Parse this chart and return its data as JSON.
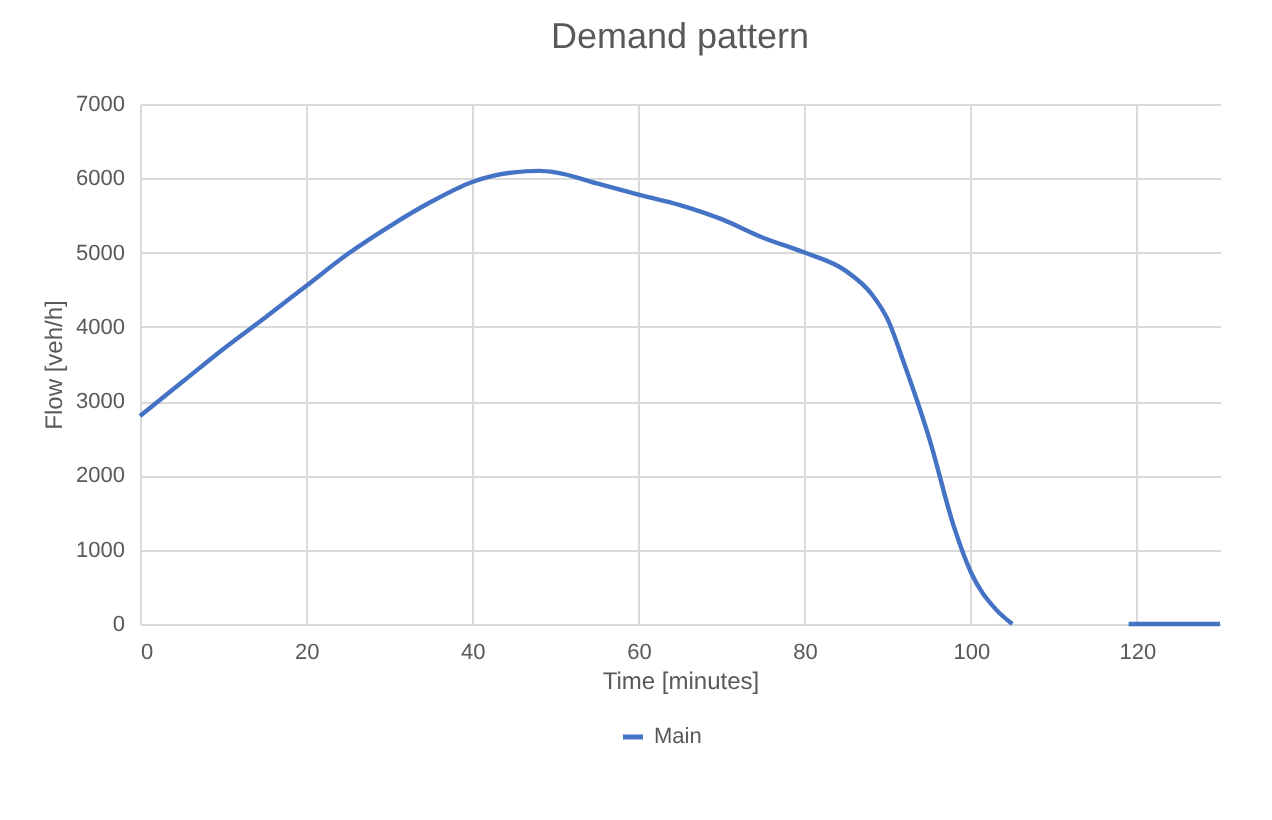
{
  "chart_data": {
    "type": "line",
    "title": "Demand pattern",
    "xlabel": "Time [minutes]",
    "ylabel": "Flow [veh/h]",
    "x": [
      0,
      5,
      10,
      15,
      20,
      25,
      30,
      35,
      40,
      45,
      48,
      50,
      55,
      60,
      65,
      70,
      75,
      80,
      85,
      88,
      90,
      92,
      95,
      98,
      100,
      103,
      105,
      112,
      119,
      125,
      130
    ],
    "series": [
      {
        "name": "Main",
        "color": "#4472c4",
        "values": [
          2800,
          3250,
          3700,
          4120,
          4550,
          4980,
          5350,
          5680,
          5950,
          6080,
          6100,
          6080,
          5930,
          5780,
          5640,
          5450,
          5200,
          5000,
          4750,
          4450,
          4100,
          3500,
          2500,
          1300,
          700,
          200,
          0,
          null,
          0,
          0,
          0
        ]
      }
    ],
    "xlim": [
      0,
      130
    ],
    "xticks": [
      0,
      20,
      40,
      60,
      80,
      100,
      120
    ],
    "ylim": [
      0,
      7000
    ],
    "yticks": [
      0,
      1000,
      2000,
      3000,
      4000,
      5000,
      6000,
      7000
    ],
    "grid": true,
    "legend": "bottom",
    "marker": "none",
    "line_style": "solid"
  }
}
